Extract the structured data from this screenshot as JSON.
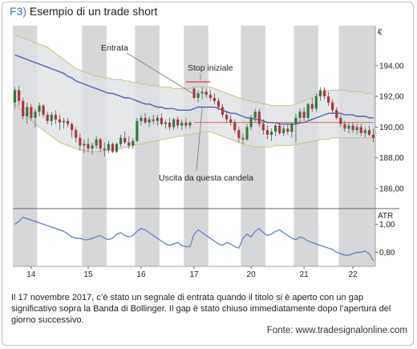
{
  "figure": {
    "label": "F3)",
    "title": "Esempio di un trade short",
    "caption": "Il 17 novembre 2017, c’è stato un segnale di entrata quando il titolo si è aperto con un gap significativo sopra la Banda di Bollinger. Il gap è stato chiuso immediatamente dopo l’apertura del giorno successivo.",
    "source": "Fonte: www.tradesignalonline.com"
  },
  "colors": {
    "bullish": "#2a7d3a",
    "bearish": "#b8303a",
    "band_fill": "#dfe1e3",
    "band_edge": "#c9c27a",
    "mid_line": "#4f5fb0",
    "session_shade": "#cfd0d2",
    "stop_line": "#d93a2e",
    "atr_line": "#5a78c2"
  },
  "chart_data": {
    "type": "candlestick",
    "price_panel": {
      "y_unit_label": "€",
      "y_ticks": [
        "194,00",
        "192,00",
        "190,00",
        "188,00",
        "186,00"
      ],
      "y_tick_values": [
        194,
        192,
        190,
        188,
        186
      ],
      "ylim": [
        184.8,
        196.6
      ]
    },
    "atr_panel": {
      "label": "ATR",
      "y_ticks": [
        "1,00",
        "0,80"
      ],
      "y_tick_values": [
        1.0,
        0.8
      ],
      "ylim": [
        0.7,
        1.1
      ]
    },
    "x_ticks": [
      "14",
      "15",
      "16",
      "17",
      "20",
      "21",
      "22"
    ],
    "x_tick_bars": [
      4,
      18,
      31,
      44,
      58,
      71,
      83
    ],
    "shaded_sessions": [
      [
        0,
        5
      ],
      [
        17,
        22
      ],
      [
        30,
        35
      ],
      [
        42,
        47
      ],
      [
        56,
        61
      ],
      [
        69,
        74
      ],
      [
        80,
        89
      ]
    ],
    "annotations": [
      {
        "label": "Entrata",
        "bar": 44,
        "price": 192.2
      },
      {
        "label": "Stop iniziale",
        "bar": 46,
        "price": 192.8
      },
      {
        "label": "Uscita da questa candela",
        "bar": 46,
        "price": 192.0
      }
    ],
    "candles": [
      {
        "o": 191.6,
        "h": 192.6,
        "l": 191.2,
        "c": 192.4
      },
      {
        "o": 192.4,
        "h": 192.7,
        "l": 191.4,
        "c": 191.7
      },
      {
        "o": 191.7,
        "h": 191.9,
        "l": 190.5,
        "c": 190.7
      },
      {
        "o": 190.7,
        "h": 191.6,
        "l": 190.2,
        "c": 191.3
      },
      {
        "o": 191.3,
        "h": 191.5,
        "l": 190.4,
        "c": 190.6
      },
      {
        "o": 190.6,
        "h": 191.2,
        "l": 190.0,
        "c": 191.0
      },
      {
        "o": 191.0,
        "h": 191.6,
        "l": 190.7,
        "c": 191.4
      },
      {
        "o": 191.4,
        "h": 191.5,
        "l": 190.6,
        "c": 190.8
      },
      {
        "o": 190.8,
        "h": 191.0,
        "l": 190.2,
        "c": 190.4
      },
      {
        "o": 190.4,
        "h": 191.0,
        "l": 190.1,
        "c": 190.8
      },
      {
        "o": 190.8,
        "h": 191.1,
        "l": 190.2,
        "c": 190.5
      },
      {
        "o": 190.5,
        "h": 190.8,
        "l": 189.8,
        "c": 190.3
      },
      {
        "o": 190.3,
        "h": 190.6,
        "l": 189.9,
        "c": 190.4
      },
      {
        "o": 190.4,
        "h": 190.6,
        "l": 190.0,
        "c": 190.2
      },
      {
        "o": 190.2,
        "h": 190.3,
        "l": 189.3,
        "c": 189.8
      },
      {
        "o": 189.8,
        "h": 190.0,
        "l": 189.0,
        "c": 189.3
      },
      {
        "o": 189.3,
        "h": 189.6,
        "l": 188.5,
        "c": 188.8
      },
      {
        "o": 188.8,
        "h": 189.2,
        "l": 188.3,
        "c": 188.9
      },
      {
        "o": 188.9,
        "h": 189.3,
        "l": 188.4,
        "c": 188.6
      },
      {
        "o": 188.6,
        "h": 189.0,
        "l": 188.2,
        "c": 188.8
      },
      {
        "o": 188.8,
        "h": 189.4,
        "l": 188.6,
        "c": 189.2
      },
      {
        "o": 189.2,
        "h": 189.3,
        "l": 188.4,
        "c": 188.6
      },
      {
        "o": 188.6,
        "h": 189.0,
        "l": 188.1,
        "c": 188.5
      },
      {
        "o": 188.5,
        "h": 189.1,
        "l": 188.3,
        "c": 188.9
      },
      {
        "o": 188.9,
        "h": 189.0,
        "l": 188.3,
        "c": 188.4
      },
      {
        "o": 188.4,
        "h": 189.0,
        "l": 188.3,
        "c": 188.9
      },
      {
        "o": 188.9,
        "h": 189.5,
        "l": 188.7,
        "c": 189.3
      },
      {
        "o": 189.3,
        "h": 189.7,
        "l": 188.9,
        "c": 189.0
      },
      {
        "o": 189.0,
        "h": 189.4,
        "l": 188.6,
        "c": 188.8
      },
      {
        "o": 188.8,
        "h": 189.3,
        "l": 188.6,
        "c": 189.1
      },
      {
        "o": 189.1,
        "h": 190.6,
        "l": 189.0,
        "c": 190.4
      },
      {
        "o": 190.4,
        "h": 190.8,
        "l": 190.1,
        "c": 190.6
      },
      {
        "o": 190.6,
        "h": 190.9,
        "l": 190.2,
        "c": 190.3
      },
      {
        "o": 190.3,
        "h": 190.7,
        "l": 190.0,
        "c": 190.5
      },
      {
        "o": 190.5,
        "h": 190.8,
        "l": 190.2,
        "c": 190.4
      },
      {
        "o": 190.4,
        "h": 190.8,
        "l": 190.1,
        "c": 190.6
      },
      {
        "o": 190.6,
        "h": 190.9,
        "l": 190.1,
        "c": 190.2
      },
      {
        "o": 190.2,
        "h": 190.5,
        "l": 189.9,
        "c": 190.3
      },
      {
        "o": 190.3,
        "h": 190.6,
        "l": 189.8,
        "c": 190.0
      },
      {
        "o": 190.0,
        "h": 190.6,
        "l": 189.8,
        "c": 190.5
      },
      {
        "o": 190.5,
        "h": 190.7,
        "l": 189.9,
        "c": 190.1
      },
      {
        "o": 190.1,
        "h": 190.5,
        "l": 189.8,
        "c": 190.3
      },
      {
        "o": 190.3,
        "h": 190.6,
        "l": 189.9,
        "c": 190.1
      },
      {
        "o": 190.1,
        "h": 190.4,
        "l": 189.9,
        "c": 190.3
      },
      {
        "o": 192.5,
        "h": 192.6,
        "l": 191.8,
        "c": 191.9
      },
      {
        "o": 191.9,
        "h": 192.4,
        "l": 191.6,
        "c": 192.2
      },
      {
        "o": 192.2,
        "h": 192.6,
        "l": 191.8,
        "c": 192.3
      },
      {
        "o": 192.3,
        "h": 192.5,
        "l": 191.9,
        "c": 192.1
      },
      {
        "o": 192.1,
        "h": 192.4,
        "l": 191.7,
        "c": 191.9
      },
      {
        "o": 191.9,
        "h": 192.2,
        "l": 191.5,
        "c": 191.7
      },
      {
        "o": 191.7,
        "h": 191.9,
        "l": 191.1,
        "c": 191.3
      },
      {
        "o": 191.3,
        "h": 191.5,
        "l": 190.6,
        "c": 190.8
      },
      {
        "o": 190.8,
        "h": 191.0,
        "l": 190.3,
        "c": 190.5
      },
      {
        "o": 190.5,
        "h": 190.8,
        "l": 190.1,
        "c": 190.3
      },
      {
        "o": 190.3,
        "h": 190.5,
        "l": 189.6,
        "c": 189.8
      },
      {
        "o": 189.8,
        "h": 190.0,
        "l": 189.0,
        "c": 189.3
      },
      {
        "o": 189.3,
        "h": 189.6,
        "l": 188.9,
        "c": 189.2
      },
      {
        "o": 189.2,
        "h": 190.2,
        "l": 189.1,
        "c": 190.0
      },
      {
        "o": 190.0,
        "h": 190.8,
        "l": 189.8,
        "c": 190.6
      },
      {
        "o": 190.6,
        "h": 191.2,
        "l": 190.3,
        "c": 191.0
      },
      {
        "o": 191.0,
        "h": 191.2,
        "l": 190.0,
        "c": 190.2
      },
      {
        "o": 190.2,
        "h": 190.5,
        "l": 189.5,
        "c": 189.8
      },
      {
        "o": 189.8,
        "h": 190.1,
        "l": 189.2,
        "c": 189.5
      },
      {
        "o": 189.5,
        "h": 189.9,
        "l": 189.1,
        "c": 189.7
      },
      {
        "o": 189.7,
        "h": 190.2,
        "l": 189.4,
        "c": 190.1
      },
      {
        "o": 190.1,
        "h": 190.3,
        "l": 189.5,
        "c": 189.6
      },
      {
        "o": 189.6,
        "h": 190.1,
        "l": 189.4,
        "c": 189.9
      },
      {
        "o": 189.9,
        "h": 190.2,
        "l": 189.5,
        "c": 189.7
      },
      {
        "o": 189.7,
        "h": 190.3,
        "l": 189.3,
        "c": 190.2
      },
      {
        "o": 190.2,
        "h": 190.9,
        "l": 189.0,
        "c": 190.6
      },
      {
        "o": 190.6,
        "h": 191.2,
        "l": 190.2,
        "c": 191.0
      },
      {
        "o": 191.0,
        "h": 191.3,
        "l": 190.4,
        "c": 190.6
      },
      {
        "o": 190.6,
        "h": 191.6,
        "l": 190.5,
        "c": 191.5
      },
      {
        "o": 191.5,
        "h": 191.9,
        "l": 191.0,
        "c": 191.2
      },
      {
        "o": 191.2,
        "h": 192.2,
        "l": 191.0,
        "c": 192.0
      },
      {
        "o": 192.0,
        "h": 192.6,
        "l": 191.7,
        "c": 192.4
      },
      {
        "o": 192.4,
        "h": 192.6,
        "l": 191.8,
        "c": 192.0
      },
      {
        "o": 192.0,
        "h": 192.3,
        "l": 191.4,
        "c": 191.6
      },
      {
        "o": 191.6,
        "h": 191.8,
        "l": 190.9,
        "c": 191.1
      },
      {
        "o": 191.1,
        "h": 191.3,
        "l": 190.5,
        "c": 190.6
      },
      {
        "o": 190.6,
        "h": 190.8,
        "l": 190.0,
        "c": 190.2
      },
      {
        "o": 190.2,
        "h": 190.4,
        "l": 189.7,
        "c": 189.9
      },
      {
        "o": 189.9,
        "h": 190.3,
        "l": 189.6,
        "c": 190.1
      },
      {
        "o": 190.1,
        "h": 190.3,
        "l": 189.6,
        "c": 189.8
      },
      {
        "o": 189.8,
        "h": 190.2,
        "l": 189.5,
        "c": 190.0
      },
      {
        "o": 190.0,
        "h": 190.2,
        "l": 189.4,
        "c": 189.6
      },
      {
        "o": 189.6,
        "h": 190.0,
        "l": 189.3,
        "c": 189.8
      },
      {
        "o": 189.8,
        "h": 190.1,
        "l": 189.4,
        "c": 189.5
      },
      {
        "o": 189.5,
        "h": 189.9,
        "l": 189.0,
        "c": 189.3
      }
    ],
    "bollinger": {
      "upper": [
        196.0,
        195.9,
        195.8,
        195.7,
        195.6,
        195.5,
        195.4,
        195.3,
        195.2,
        195.0,
        194.8,
        194.6,
        194.4,
        194.2,
        194.0,
        193.8,
        193.7,
        193.6,
        193.5,
        193.4,
        193.3,
        193.3,
        193.2,
        193.2,
        193.1,
        193.1,
        193.1,
        193.0,
        193.0,
        192.9,
        192.9,
        192.8,
        192.8,
        192.7,
        192.7,
        192.7,
        192.6,
        192.6,
        192.6,
        192.5,
        192.5,
        192.5,
        192.5,
        192.5,
        192.6,
        192.6,
        192.6,
        192.6,
        192.6,
        192.5,
        192.4,
        192.3,
        192.2,
        192.1,
        192.0,
        191.9,
        191.8,
        191.7,
        191.7,
        191.6,
        191.6,
        191.5,
        191.5,
        191.4,
        191.4,
        191.4,
        191.4,
        191.4,
        191.4,
        191.5,
        191.6,
        191.7,
        191.8,
        191.9,
        192.0,
        192.2,
        192.3,
        192.4,
        192.4,
        192.4,
        192.4,
        192.4,
        192.3,
        192.3,
        192.3,
        192.3,
        192.2,
        192.2,
        192.2
      ],
      "middle": [
        194.7,
        194.6,
        194.5,
        194.4,
        194.3,
        194.2,
        194.1,
        194.0,
        193.9,
        193.8,
        193.7,
        193.6,
        193.5,
        193.3,
        193.2,
        193.0,
        192.9,
        192.8,
        192.7,
        192.6,
        192.5,
        192.4,
        192.3,
        192.2,
        192.2,
        192.1,
        192.0,
        191.9,
        191.9,
        191.8,
        191.7,
        191.6,
        191.5,
        191.5,
        191.4,
        191.3,
        191.3,
        191.2,
        191.2,
        191.2,
        191.1,
        191.1,
        191.1,
        191.1,
        191.2,
        191.3,
        191.3,
        191.3,
        191.3,
        191.3,
        191.2,
        191.1,
        191.0,
        190.9,
        190.9,
        190.8,
        190.7,
        190.6,
        190.6,
        190.5,
        190.5,
        190.4,
        190.3,
        190.3,
        190.3,
        190.2,
        190.2,
        190.2,
        190.2,
        190.2,
        190.3,
        190.3,
        190.4,
        190.5,
        190.6,
        190.7,
        190.8,
        190.9,
        190.9,
        190.9,
        190.9,
        190.8,
        190.8,
        190.8,
        190.7,
        190.7,
        190.7,
        190.6,
        190.6
      ],
      "lower": [
        191.5,
        191.3,
        191.0,
        190.7,
        190.5,
        190.2,
        190.0,
        189.8,
        189.6,
        189.4,
        189.2,
        189.0,
        188.9,
        188.8,
        188.7,
        188.6,
        188.5,
        188.5,
        188.4,
        188.4,
        188.4,
        188.4,
        188.5,
        188.5,
        188.5,
        188.6,
        188.6,
        188.7,
        188.7,
        188.8,
        188.9,
        188.9,
        189.0,
        189.0,
        189.1,
        189.1,
        189.2,
        189.2,
        189.3,
        189.3,
        189.4,
        189.4,
        189.5,
        189.5,
        189.6,
        189.6,
        189.7,
        189.7,
        189.7,
        189.6,
        189.5,
        189.4,
        189.3,
        189.2,
        189.1,
        189.0,
        188.9,
        188.8,
        188.8,
        188.7,
        188.7,
        188.7,
        188.7,
        188.7,
        188.8,
        188.8,
        188.8,
        188.8,
        188.8,
        188.9,
        188.9,
        189.0,
        189.0,
        189.1,
        189.1,
        189.2,
        189.2,
        189.2,
        189.3,
        189.3,
        189.3,
        189.3,
        189.3,
        189.3,
        189.3,
        189.3,
        189.3,
        189.3,
        189.3
      ]
    },
    "stop_line": {
      "price": 190.3,
      "from_bar": 44,
      "to_bar": 88
    },
    "atr": [
      1.0,
      1.02,
      1.05,
      1.04,
      1.03,
      1.02,
      1.01,
      1.0,
      0.99,
      0.98,
      0.97,
      0.96,
      0.95,
      0.93,
      0.91,
      0.9,
      0.9,
      0.89,
      0.89,
      0.9,
      0.91,
      0.92,
      0.9,
      0.89,
      0.9,
      0.93,
      0.94,
      0.92,
      0.91,
      0.92,
      0.95,
      0.97,
      0.96,
      0.94,
      0.92,
      0.9,
      0.88,
      0.86,
      0.85,
      0.86,
      0.87,
      0.85,
      0.84,
      0.84,
      0.93,
      0.96,
      0.94,
      0.92,
      0.9,
      0.88,
      0.86,
      0.85,
      0.87,
      0.86,
      0.84,
      0.83,
      0.9,
      0.93,
      0.91,
      0.95,
      0.97,
      0.94,
      0.92,
      0.93,
      0.95,
      0.96,
      0.94,
      0.92,
      0.9,
      0.89,
      0.91,
      0.9,
      0.88,
      0.87,
      0.86,
      0.85,
      0.84,
      0.83,
      0.82,
      0.8,
      0.79,
      0.78,
      0.78,
      0.79,
      0.8,
      0.8,
      0.81,
      0.79,
      0.74
    ]
  }
}
